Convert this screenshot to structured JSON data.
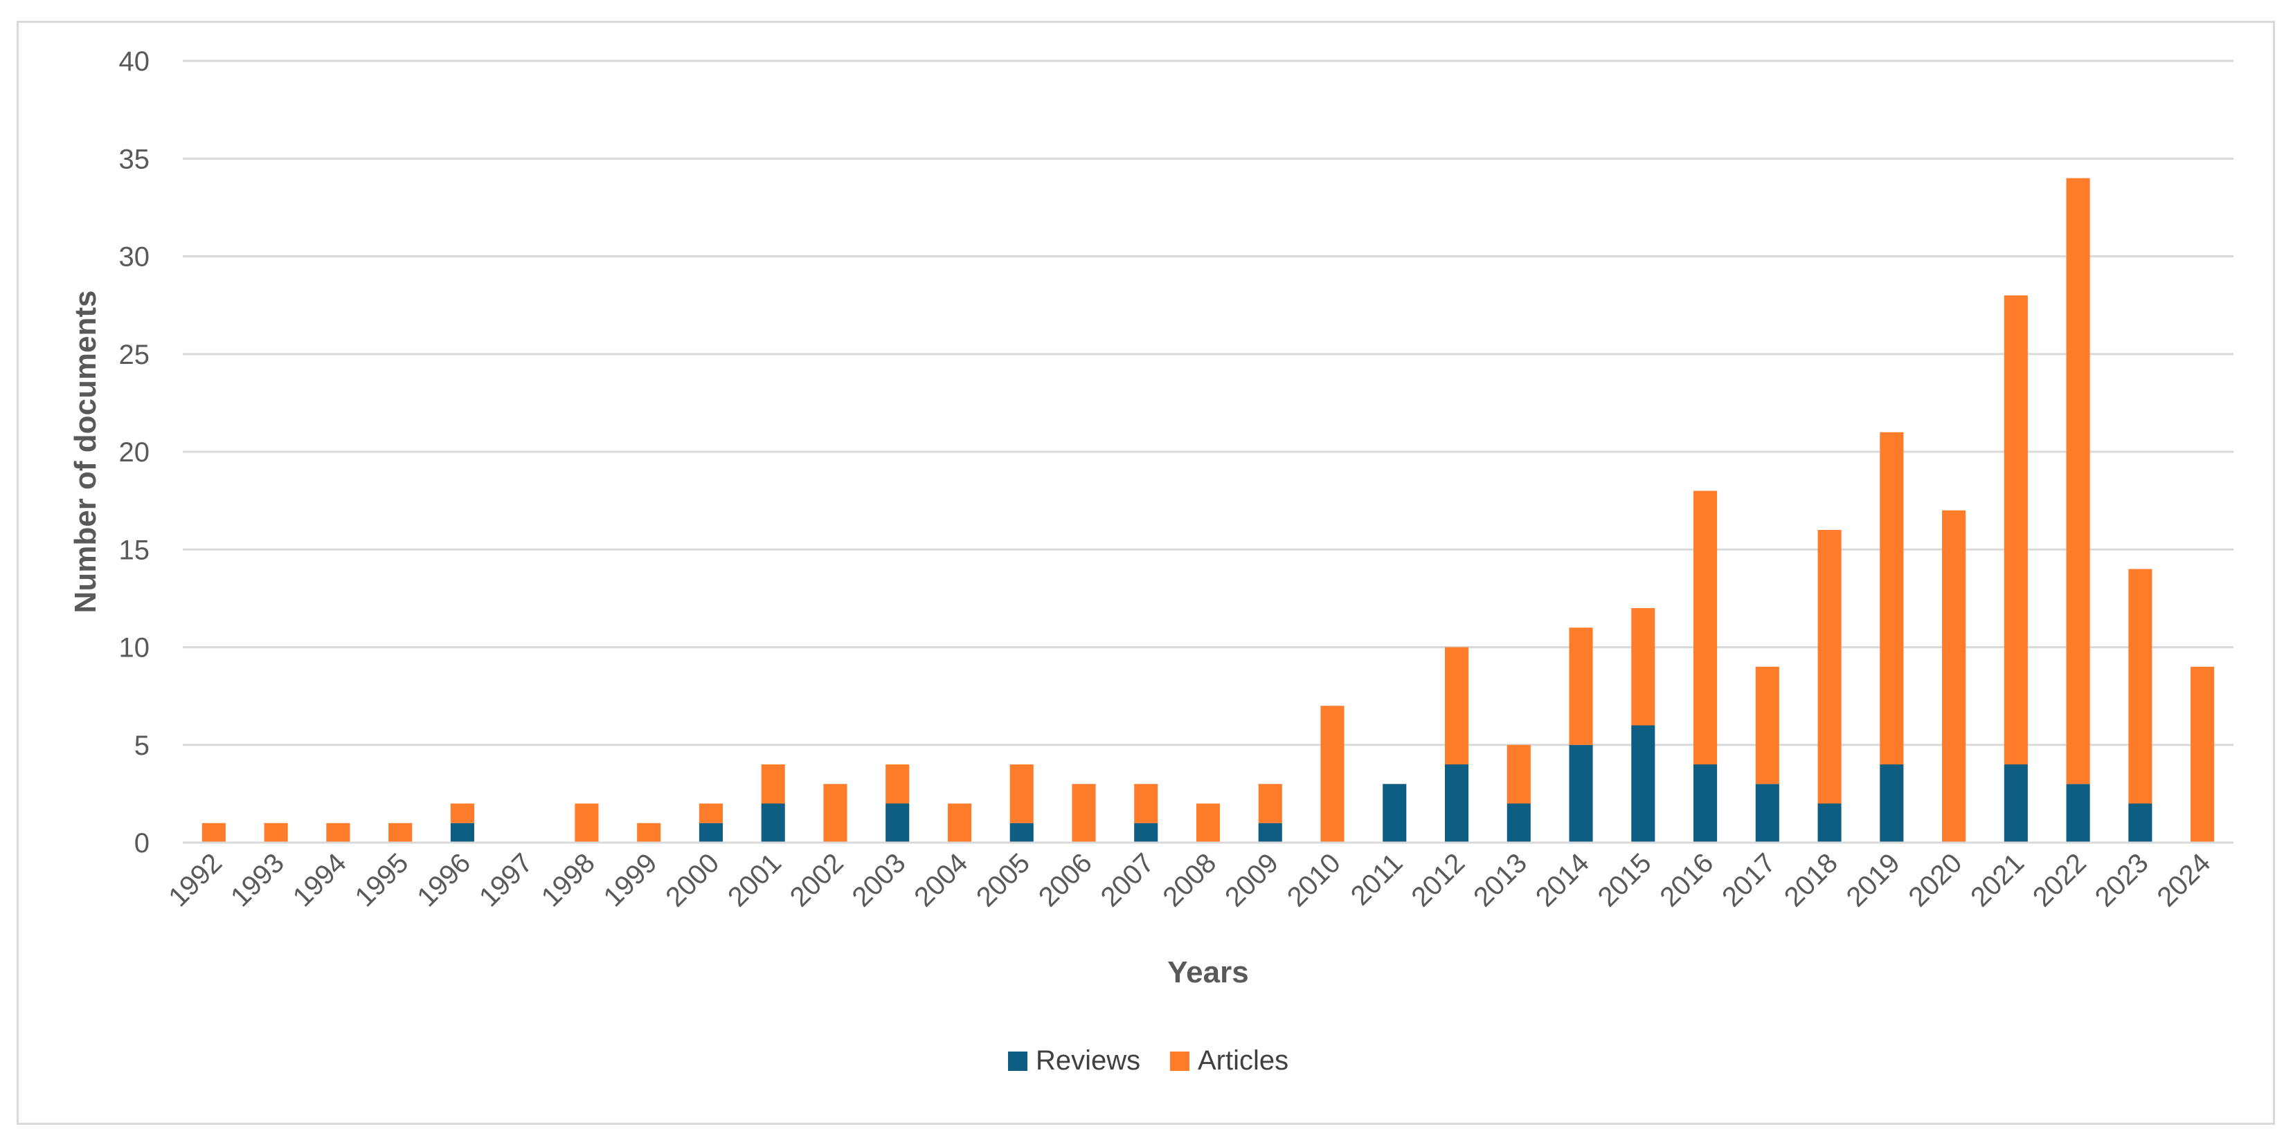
{
  "chart_data": {
    "type": "bar",
    "stacked": true,
    "title": "",
    "xlabel": "Years",
    "ylabel": "Number of documents",
    "ylim": [
      0,
      40
    ],
    "yticks": [
      0,
      5,
      10,
      15,
      20,
      25,
      30,
      35,
      40
    ],
    "grid": true,
    "legend_position": "bottom-center",
    "categories": [
      "1992",
      "1993",
      "1994",
      "1995",
      "1996",
      "1997",
      "1998",
      "1999",
      "2000",
      "2001",
      "2002",
      "2003",
      "2004",
      "2005",
      "2006",
      "2007",
      "2008",
      "2009",
      "2010",
      "2011",
      "2012",
      "2013",
      "2014",
      "2015",
      "2016",
      "2017",
      "2018",
      "2019",
      "2020",
      "2021",
      "2022",
      "2023",
      "2024"
    ],
    "series": [
      {
        "name": "Reviews",
        "color": "#0e5d82",
        "values": [
          0,
          0,
          0,
          0,
          1,
          0,
          0,
          0,
          1,
          2,
          0,
          2,
          0,
          1,
          0,
          1,
          0,
          1,
          0,
          3,
          4,
          2,
          5,
          6,
          4,
          3,
          2,
          4,
          0,
          4,
          3,
          2,
          0
        ]
      },
      {
        "name": "Articles",
        "color": "#ff7c2a",
        "values": [
          1,
          1,
          1,
          1,
          1,
          0,
          2,
          1,
          1,
          2,
          3,
          2,
          2,
          3,
          3,
          2,
          2,
          2,
          7,
          0,
          6,
          3,
          6,
          6,
          14,
          6,
          14,
          17,
          17,
          24,
          31,
          12,
          9
        ]
      }
    ]
  }
}
